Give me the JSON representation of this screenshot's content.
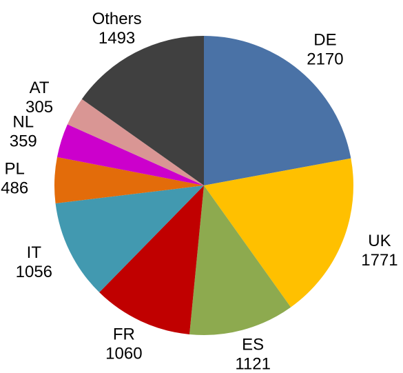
{
  "chart_data": {
    "type": "pie",
    "categories": [
      "DE",
      "UK",
      "ES",
      "FR",
      "IT",
      "PL",
      "NL",
      "AT",
      "Others"
    ],
    "values": [
      2170,
      1771,
      1121,
      1060,
      1056,
      486,
      359,
      305,
      1493
    ],
    "colors": [
      "#4a72a6",
      "#ffc000",
      "#8daa4f",
      "#c00000",
      "#4299b0",
      "#e36c0a",
      "#cc00cc",
      "#d99694",
      "#404040"
    ]
  }
}
